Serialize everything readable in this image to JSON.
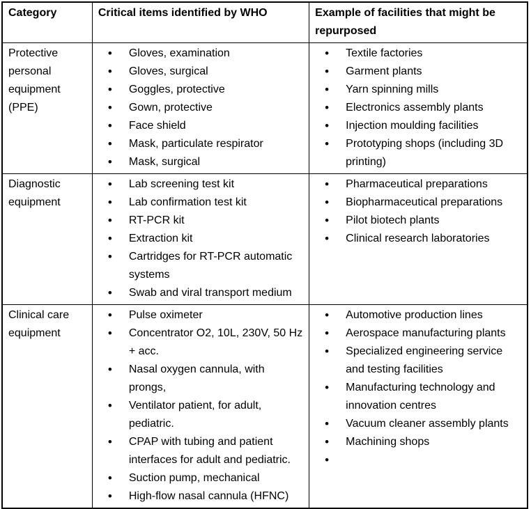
{
  "table": {
    "headers": [
      "Category",
      "Critical items identified by WHO",
      "Example of facilities that might be repurposed"
    ],
    "rows": [
      {
        "category": "Protective personal equipment (PPE)",
        "items": [
          "Gloves, examination",
          "Gloves, surgical",
          "Goggles, protective",
          "Gown, protective",
          "Face shield",
          "Mask, particulate respirator",
          "Mask, surgical"
        ],
        "facilities": [
          "Textile factories",
          "Garment plants",
          "Yarn spinning mills",
          "Electronics assembly plants",
          "Injection moulding facilities",
          "Prototyping shops (including 3D printing)"
        ]
      },
      {
        "category": "Diagnostic equipment",
        "items": [
          "Lab screening test kit",
          "Lab confirmation test kit",
          "RT-PCR kit",
          "Extraction kit",
          "Cartridges for RT-PCR automatic systems",
          "Swab and viral transport medium"
        ],
        "facilities": [
          "Pharmaceutical preparations",
          "Biopharmaceutical preparations",
          "Pilot biotech plants",
          "Clinical research laboratories"
        ]
      },
      {
        "category": "Clinical care equipment",
        "items": [
          "Pulse oximeter",
          "Concentrator O2, 10L, 230V, 50 Hz + acc.",
          "Nasal oxygen cannula, with prongs,",
          "Ventilator patient, for adult, pediatric.",
          "CPAP with tubing and patient interfaces for adult and pediatric.",
          "Suction pump, mechanical",
          "High-flow nasal cannula (HFNC)"
        ],
        "facilities": [
          "Automotive production lines",
          "Aerospace manufacturing plants",
          "Specialized engineering service and testing facilities",
          "Manufacturing technology and innovation centres",
          "Vacuum cleaner assembly plants",
          "Machining shops",
          ""
        ]
      }
    ]
  },
  "colors": {
    "border": "#000000",
    "text": "#000000",
    "background": "#ffffff"
  }
}
